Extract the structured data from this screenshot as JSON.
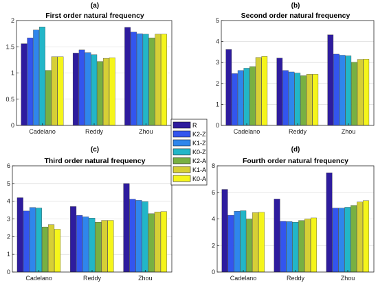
{
  "colors": {
    "series": [
      "#2e1c9e",
      "#3355ee",
      "#2f86ec",
      "#22b6c8",
      "#78b042",
      "#d6cf36",
      "#f5f51b"
    ],
    "grid": "#d6d6d6",
    "axis": "#262626",
    "text": "#1a1a1a"
  },
  "chart_data": [
    {
      "type": "bar",
      "panel_label": "(a)",
      "title": "First order natural frequency",
      "categories": [
        "Cadelano",
        "Reddy",
        "Zhou"
      ],
      "ylim": [
        0,
        2
      ],
      "yticks": [
        0,
        0.5,
        1,
        1.5,
        2
      ],
      "ytick_labels": [
        "0",
        "0.5",
        "1",
        "1.5",
        "2"
      ],
      "grid": true,
      "series": [
        {
          "name": "R",
          "values": [
            1.56,
            1.38,
            1.87
          ]
        },
        {
          "name": "K2-Z",
          "values": [
            1.67,
            1.44,
            1.78
          ]
        },
        {
          "name": "K1-Z",
          "values": [
            1.82,
            1.39,
            1.75
          ]
        },
        {
          "name": "K0-Z",
          "values": [
            1.88,
            1.35,
            1.74
          ]
        },
        {
          "name": "K2-A",
          "values": [
            1.05,
            1.22,
            1.67
          ]
        },
        {
          "name": "K1-A",
          "values": [
            1.31,
            1.28,
            1.74
          ]
        },
        {
          "name": "K0-A",
          "values": [
            1.31,
            1.29,
            1.74
          ]
        }
      ]
    },
    {
      "type": "bar",
      "panel_label": "(b)",
      "title": "Second order natural frequency",
      "categories": [
        "Cadelano",
        "Reddy",
        "Zhou"
      ],
      "ylim": [
        0,
        5
      ],
      "yticks": [
        0,
        1,
        2,
        3,
        4,
        5
      ],
      "ytick_labels": [
        "0",
        "1",
        "2",
        "3",
        "4",
        "5"
      ],
      "grid": true,
      "series": [
        {
          "name": "R",
          "values": [
            3.62,
            3.21,
            4.32
          ]
        },
        {
          "name": "K2-Z",
          "values": [
            2.47,
            2.62,
            3.4
          ]
        },
        {
          "name": "K1-Z",
          "values": [
            2.62,
            2.55,
            3.35
          ]
        },
        {
          "name": "K0-Z",
          "values": [
            2.73,
            2.5,
            3.32
          ]
        },
        {
          "name": "K2-A",
          "values": [
            2.8,
            2.37,
            3.01
          ]
        },
        {
          "name": "K1-A",
          "values": [
            3.24,
            2.44,
            3.15
          ]
        },
        {
          "name": "K0-A",
          "values": [
            3.29,
            2.44,
            3.16
          ]
        }
      ]
    },
    {
      "type": "bar",
      "panel_label": "(c)",
      "title": "Third order natural frequency",
      "categories": [
        "Cadelano",
        "Reddy",
        "Zhou"
      ],
      "ylim": [
        0,
        6
      ],
      "yticks": [
        0,
        1,
        2,
        3,
        4,
        5,
        6
      ],
      "ytick_labels": [
        "0",
        "1",
        "2",
        "3",
        "4",
        "5",
        "6"
      ],
      "grid": true,
      "series": [
        {
          "name": "R",
          "values": [
            4.2,
            3.7,
            5.0
          ]
        },
        {
          "name": "K2-Z",
          "values": [
            3.45,
            3.2,
            4.12
          ]
        },
        {
          "name": "K1-Z",
          "values": [
            3.65,
            3.12,
            4.05
          ]
        },
        {
          "name": "K0-Z",
          "values": [
            3.62,
            3.05,
            3.98
          ]
        },
        {
          "name": "K2-A",
          "values": [
            2.55,
            2.82,
            3.3
          ]
        },
        {
          "name": "K1-A",
          "values": [
            2.68,
            2.92,
            3.4
          ]
        },
        {
          "name": "K0-A",
          "values": [
            2.42,
            2.92,
            3.42
          ]
        }
      ]
    },
    {
      "type": "bar",
      "panel_label": "(d)",
      "title": "Fourth order natural frequency",
      "categories": [
        "Cadelano",
        "Reddy",
        "Zhou"
      ],
      "ylim": [
        0,
        8
      ],
      "yticks": [
        0,
        2,
        4,
        6,
        8
      ],
      "ytick_labels": [
        "0",
        "2",
        "4",
        "6",
        "8"
      ],
      "grid": true,
      "series": [
        {
          "name": "R",
          "values": [
            6.22,
            5.5,
            7.48
          ]
        },
        {
          "name": "K2-Z",
          "values": [
            4.28,
            3.82,
            4.82
          ]
        },
        {
          "name": "K1-Z",
          "values": [
            4.58,
            3.8,
            4.82
          ]
        },
        {
          "name": "K0-Z",
          "values": [
            4.62,
            3.76,
            4.88
          ]
        },
        {
          "name": "K2-A",
          "values": [
            4.0,
            3.88,
            5.02
          ]
        },
        {
          "name": "K1-A",
          "values": [
            4.48,
            4.0,
            5.28
          ]
        },
        {
          "name": "K0-A",
          "values": [
            4.5,
            4.08,
            5.38
          ]
        }
      ]
    }
  ],
  "legend": {
    "placement": "center",
    "entries": [
      "R",
      "K2-Z",
      "K1-Z",
      "K0-Z",
      "K2-A",
      "K1-A",
      "K0-A"
    ]
  }
}
